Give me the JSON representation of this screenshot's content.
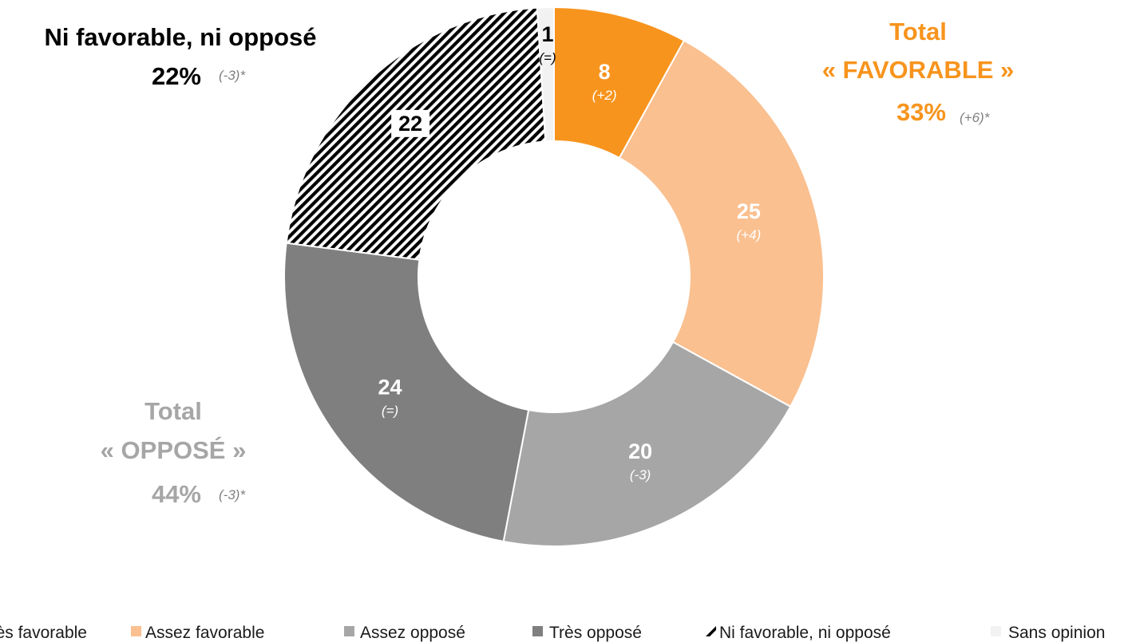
{
  "chart_data": {
    "type": "pie",
    "donut": true,
    "slices": [
      {
        "label": "Très favorable",
        "value": 8,
        "delta": "(+2)",
        "color": "#f7941d",
        "text_color": "#ffffff",
        "delta_color": "#ffffff"
      },
      {
        "label": "Assez favorable",
        "value": 25,
        "delta": "(+4)",
        "color": "#fac090",
        "text_color": "#ffffff",
        "delta_color": "#ffffff"
      },
      {
        "label": "Assez opposé",
        "value": 20,
        "delta": "(-3)",
        "color": "#a6a6a6",
        "text_color": "#ffffff",
        "delta_color": "#ffffff"
      },
      {
        "label": "Très opposé",
        "value": 24,
        "delta": "(=)",
        "color": "#7f7f7f",
        "text_color": "#ffffff",
        "delta_color": "#ffffff"
      },
      {
        "label": "Ni favorable, ni opposé",
        "value": 22,
        "delta": "",
        "color": "hatch",
        "text_color": "#000000",
        "delta_color": "#000000"
      },
      {
        "label": "Sans opinion",
        "value": 1,
        "delta": "(=)",
        "color": "#f2f2f2",
        "text_color": "#000000",
        "delta_color": "#000000"
      }
    ],
    "legend": {
      "placement": "bottom",
      "items": [
        "Très favorable",
        "Assez favorable",
        "Assez opposé",
        "Très opposé",
        "Ni favorable, ni opposé",
        "Sans opinion"
      ]
    },
    "annotations": {
      "ni": {
        "title": "Ni favorable, ni opposé",
        "pct": "22%",
        "delta": "(-3)*",
        "color": "#000000"
      },
      "favorable": {
        "title_line1": "Total",
        "title_line2": "« FAVORABLE »",
        "pct": "33%",
        "delta": "(+6)*",
        "color": "#f7941d"
      },
      "oppose": {
        "title_line1": "Total",
        "title_line2": "« OPPOSÉ »",
        "pct": "44%",
        "delta": "(-3)*",
        "color": "#a6a6a6"
      }
    }
  }
}
